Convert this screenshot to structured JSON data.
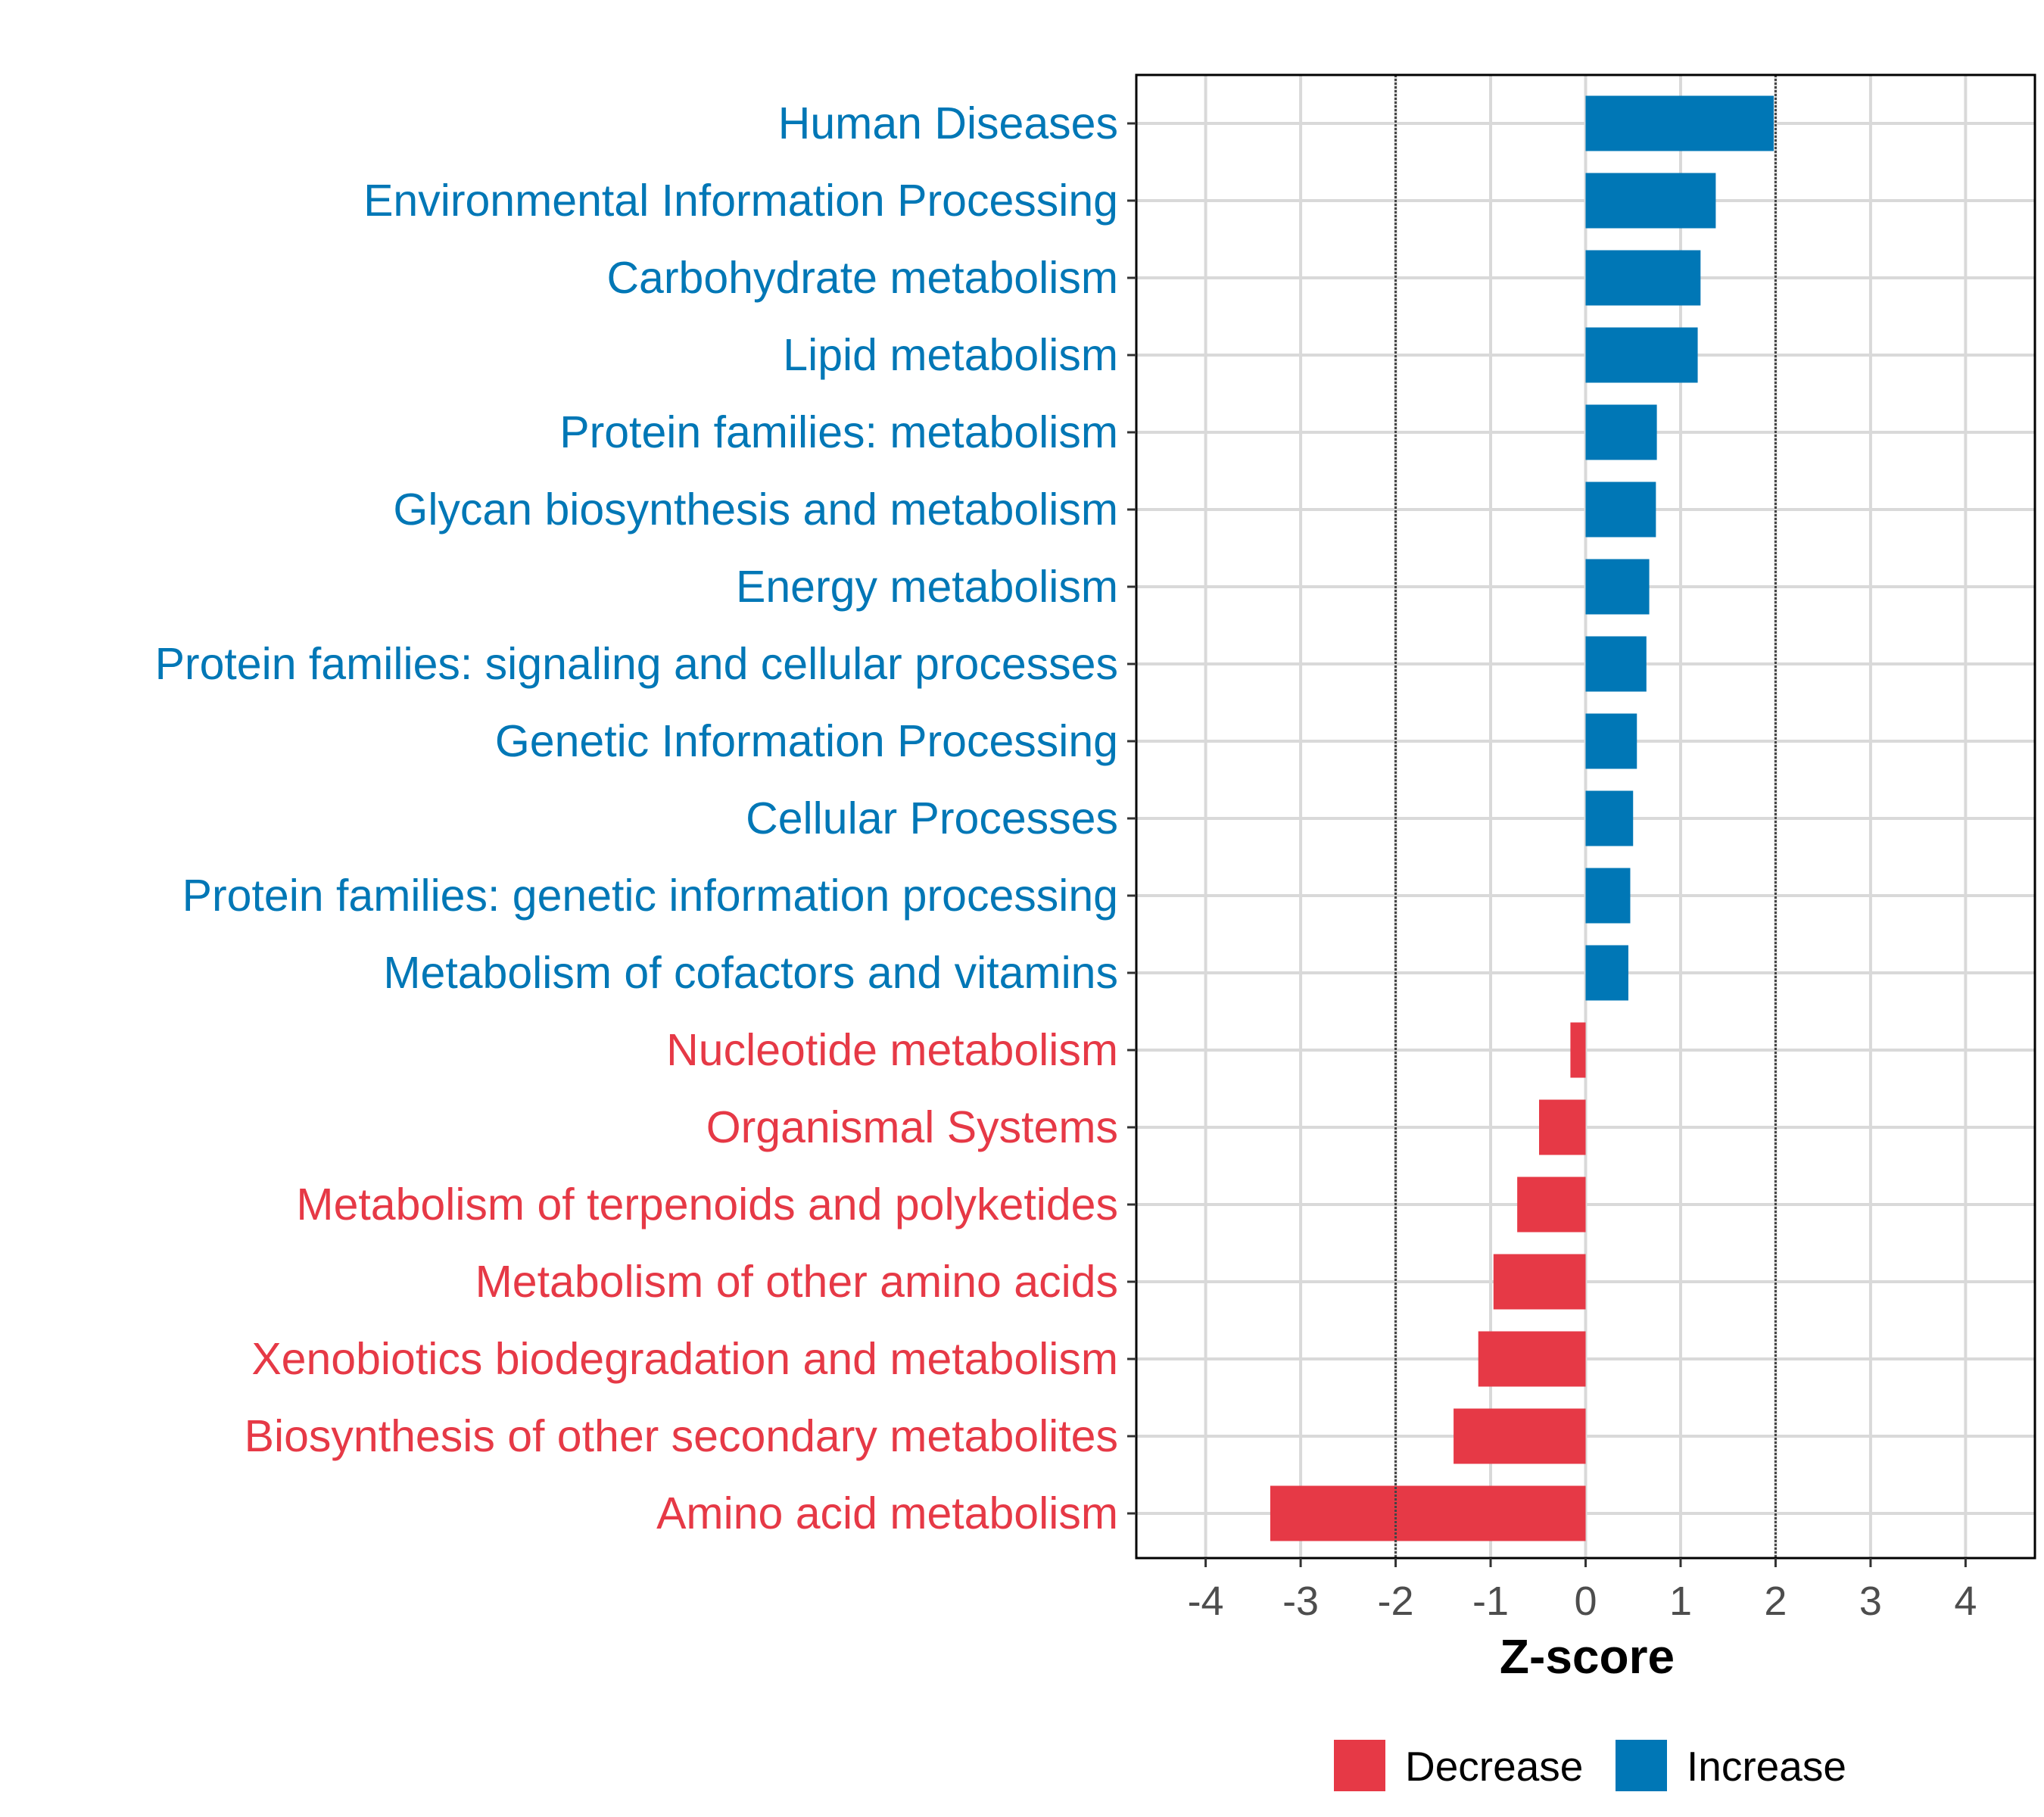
{
  "chart_data": {
    "type": "bar",
    "orientation": "horizontal",
    "title": "",
    "xlabel": "Z-score",
    "ylabel": "",
    "xlim": [
      -4.73,
      4.73
    ],
    "xticks": [
      -4,
      -3,
      -2,
      -1,
      0,
      1,
      2,
      3,
      4
    ],
    "xtick_labels": [
      "-4",
      "-3",
      "-2",
      "-1",
      "0",
      "1",
      "2",
      "3",
      "4"
    ],
    "reference_lines": [
      -2,
      2
    ],
    "grid": true,
    "legend_position": "bottom",
    "categories": [
      "Human Diseases",
      "Environmental Information Processing",
      "Carbohydrate metabolism",
      "Lipid metabolism",
      "Protein families: metabolism",
      "Glycan biosynthesis and metabolism",
      "Energy metabolism",
      "Protein families: signaling and cellular processes",
      "Genetic Information Processing",
      "Cellular Processes",
      "Protein families: genetic information processing",
      "Metabolism of cofactors and vitamins",
      "Nucleotide metabolism",
      "Organismal Systems",
      "Metabolism of terpenoids and polyketides",
      "Metabolism of other amino acids",
      "Xenobiotics biodegradation and metabolism",
      "Biosynthesis of other secondary metabolites",
      "Amino acid metabolism"
    ],
    "values": [
      1.98,
      1.37,
      1.21,
      1.18,
      0.75,
      0.74,
      0.67,
      0.64,
      0.54,
      0.5,
      0.47,
      0.45,
      -0.16,
      -0.49,
      -0.72,
      -0.97,
      -1.13,
      -1.39,
      -3.32
    ],
    "groups": [
      "Increase",
      "Increase",
      "Increase",
      "Increase",
      "Increase",
      "Increase",
      "Increase",
      "Increase",
      "Increase",
      "Increase",
      "Increase",
      "Increase",
      "Decrease",
      "Decrease",
      "Decrease",
      "Decrease",
      "Decrease",
      "Decrease",
      "Decrease"
    ],
    "legend": [
      {
        "label": "Decrease",
        "color": "#E63946"
      },
      {
        "label": "Increase",
        "color": "#0077B6"
      }
    ]
  }
}
